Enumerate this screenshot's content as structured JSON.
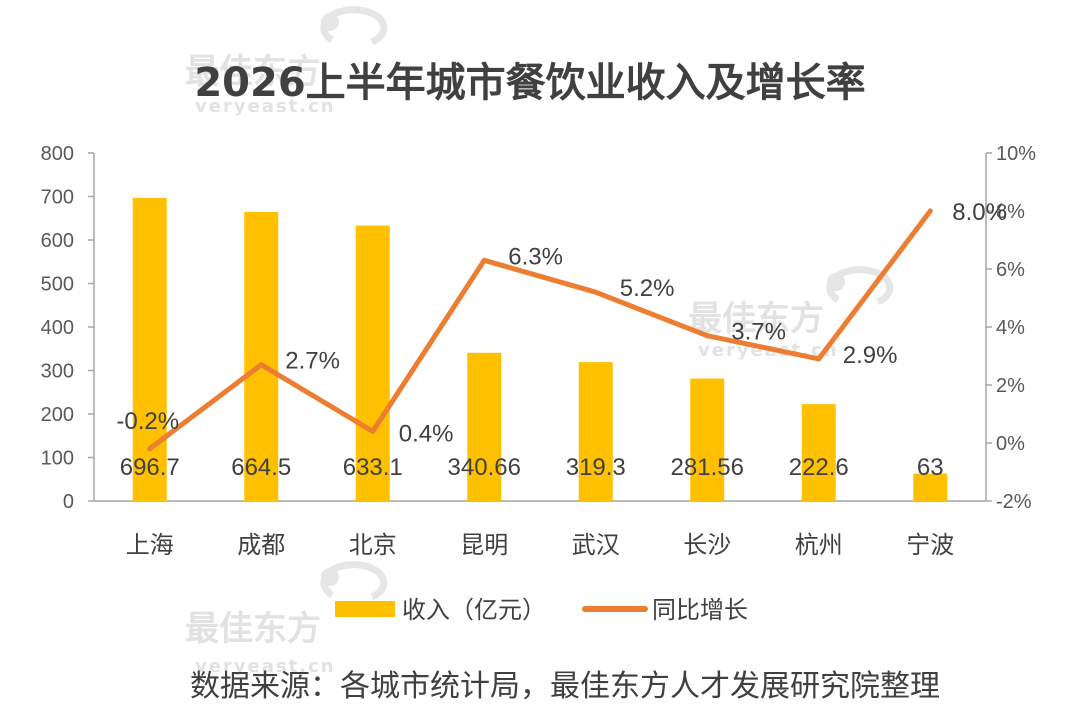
{
  "watermark": {
    "brand": "最佳东方",
    "domain": "veryeast.cn"
  },
  "source": "数据来源：各城市统计局，最佳东方人才发展研究院整理",
  "chart_data": {
    "type": "bar",
    "title": "2026上半年城市餐饮业收入及增长率",
    "categories": [
      "上海",
      "成都",
      "北京",
      "昆明",
      "武汉",
      "长沙",
      "杭州",
      "宁波"
    ],
    "series": [
      {
        "name": "收入（亿元）",
        "type": "bar",
        "axis": "left",
        "color": "#FFC000",
        "values": [
          696.7,
          664.5,
          633.1,
          340.66,
          319.3,
          281.56,
          222.6,
          63
        ],
        "labels": [
          "696.7",
          "664.5",
          "633.1",
          "340.66",
          "319.3",
          "281.56",
          "222.6",
          "63"
        ]
      },
      {
        "name": "同比增长",
        "type": "line",
        "axis": "right",
        "color": "#ED7D31",
        "values": [
          -0.2,
          2.7,
          0.4,
          6.3,
          5.2,
          3.7,
          2.9,
          8.0
        ],
        "labels": [
          "-0.2%",
          "2.7%",
          "0.4%",
          "6.3%",
          "5.2%",
          "3.7%",
          "2.9%",
          "8.0%"
        ]
      }
    ],
    "y_left": {
      "min": 0,
      "max": 800,
      "step": 100,
      "ticks": [
        "0",
        "100",
        "200",
        "300",
        "400",
        "500",
        "600",
        "700",
        "800"
      ]
    },
    "y_right": {
      "min": -2,
      "max": 10,
      "step": 2,
      "ticks": [
        "-2%",
        "0%",
        "2%",
        "4%",
        "6%",
        "8%",
        "10%"
      ]
    },
    "grid": false,
    "legend_position": "bottom"
  }
}
